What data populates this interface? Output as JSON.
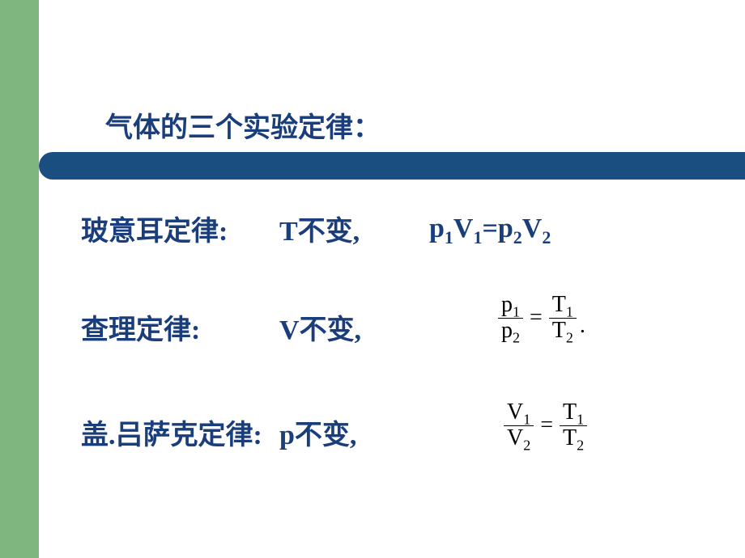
{
  "title": "气体的三个实验定律：",
  "colors": {
    "sidebar": "#7fb57f",
    "header_bar": "#1a4d80",
    "text_main": "#1a3d7c",
    "formula_black": "#000000",
    "background": "#ffffff"
  },
  "typography": {
    "title_fontsize": 34,
    "law_fontsize": 34,
    "formula_fontsize": 28,
    "subscript_fontsize": 22
  },
  "laws": [
    {
      "name": "玻意耳定律:",
      "condition_var": "T",
      "condition_suffix": "不变,",
      "equation_type": "inline",
      "equation": {
        "p1": "p",
        "s1": "1",
        "v1": "V",
        "vs1": "1",
        "p2": "p",
        "s2": "2",
        "v2": "V",
        "vs2": "2"
      }
    },
    {
      "name": "查理定律:",
      "condition_var": "V",
      "condition_suffix": "不变,",
      "equation_type": "fraction",
      "left_num": "p",
      "left_num_sub": "1",
      "left_den": "p",
      "left_den_sub": "2",
      "right_num": "T",
      "right_num_sub": "1",
      "right_den": "T",
      "right_den_sub": "2",
      "trailing": "."
    },
    {
      "name": "盖.吕萨克定律:",
      "condition_var": "p",
      "condition_suffix": "不变,",
      "equation_type": "fraction",
      "left_num": "V",
      "left_num_sub": "1",
      "left_den": "V",
      "left_den_sub": "2",
      "right_num": "T",
      "right_num_sub": "1",
      "right_den": "T",
      "right_den_sub": "2",
      "trailing": ""
    }
  ]
}
